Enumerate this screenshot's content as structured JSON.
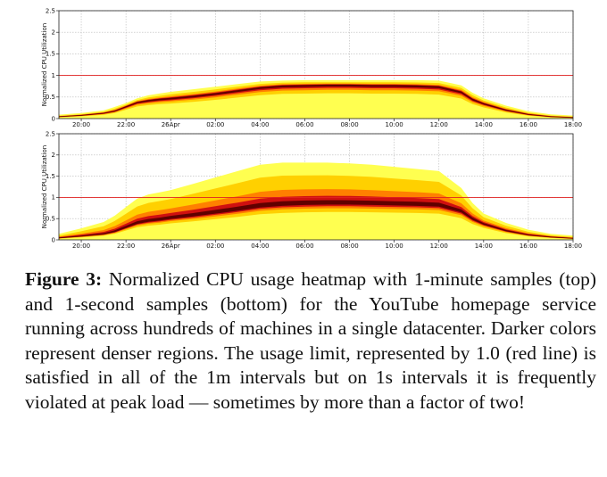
{
  "caption": {
    "label": "Figure 3:",
    "text": "Normalized CPU usage heatmap with 1-minute samples (top) and 1-second samples (bottom) for the YouTube homepage service running across hundreds of machines in a single datacenter. Darker colors represent denser regions. The usage limit, represented by 1.0 (red line) is satisfied in all of the 1m intervals but on 1s intervals it is frequently violated at peak load — sometimes by more than a factor of two!"
  },
  "chart_data": [
    {
      "type": "heatmap",
      "panel": "1-minute samples",
      "ylabel": "Normalized CPU Utilization",
      "x_ticks": [
        "20:00",
        "22:00",
        "26Apr",
        "02:00",
        "04:00",
        "06:00",
        "08:00",
        "10:00",
        "12:00",
        "14:00",
        "16:00",
        "18:00"
      ],
      "y_ticks": [
        "0",
        "0.5",
        "1",
        "1.5",
        "2",
        "2.5"
      ],
      "ylim": [
        0,
        2.5
      ],
      "limit_line": 1.0,
      "limit_color": "#e02020",
      "grid": true,
      "colormap": [
        "#ffff50",
        "#ffd000",
        "#ff8000",
        "#d01010",
        "#600000"
      ],
      "x": [
        19,
        20,
        21,
        21.5,
        22,
        22.5,
        23,
        23.5,
        24,
        25,
        26,
        27,
        28,
        29,
        30,
        31,
        32,
        33,
        34,
        35,
        36,
        37,
        37.5,
        38,
        39,
        40,
        41,
        42
      ],
      "median": [
        0.05,
        0.08,
        0.13,
        0.18,
        0.28,
        0.38,
        0.42,
        0.45,
        0.47,
        0.52,
        0.58,
        0.65,
        0.72,
        0.76,
        0.77,
        0.78,
        0.78,
        0.77,
        0.77,
        0.76,
        0.74,
        0.62,
        0.45,
        0.35,
        0.2,
        0.1,
        0.05,
        0.03
      ],
      "upper": [
        0.07,
        0.11,
        0.17,
        0.25,
        0.34,
        0.45,
        0.52,
        0.56,
        0.6,
        0.66,
        0.72,
        0.78,
        0.84,
        0.86,
        0.87,
        0.87,
        0.87,
        0.87,
        0.87,
        0.87,
        0.86,
        0.75,
        0.58,
        0.45,
        0.28,
        0.15,
        0.08,
        0.05
      ]
    },
    {
      "type": "heatmap",
      "panel": "1-second samples",
      "ylabel": "Normalized CPU Utilization",
      "x_ticks": [
        "20:00",
        "22:00",
        "26Apr",
        "02:00",
        "04:00",
        "06:00",
        "08:00",
        "10:00",
        "12:00",
        "14:00",
        "16:00",
        "18:00"
      ],
      "y_ticks": [
        "0",
        "0.5",
        "1",
        "1.5",
        "2",
        "2.5"
      ],
      "ylim": [
        0,
        2.5
      ],
      "limit_line": 1.0,
      "limit_color": "#e02020",
      "grid": true,
      "colormap": [
        "#ffff50",
        "#ffd000",
        "#ff8000",
        "#d01010",
        "#600000"
      ],
      "x": [
        19,
        20,
        21,
        21.5,
        22,
        22.5,
        23,
        23.5,
        24,
        25,
        26,
        27,
        28,
        29,
        30,
        31,
        32,
        33,
        34,
        35,
        36,
        37,
        37.5,
        38,
        39,
        40,
        41,
        42
      ],
      "median": [
        0.05,
        0.09,
        0.14,
        0.2,
        0.3,
        0.4,
        0.45,
        0.48,
        0.52,
        0.58,
        0.65,
        0.72,
        0.8,
        0.84,
        0.86,
        0.87,
        0.87,
        0.86,
        0.85,
        0.84,
        0.82,
        0.68,
        0.5,
        0.38,
        0.22,
        0.12,
        0.07,
        0.04
      ],
      "upper": [
        0.12,
        0.25,
        0.4,
        0.55,
        0.75,
        0.95,
        1.05,
        1.1,
        1.15,
        1.3,
        1.45,
        1.6,
        1.75,
        1.8,
        1.8,
        1.8,
        1.78,
        1.75,
        1.7,
        1.65,
        1.6,
        1.2,
        0.85,
        0.6,
        0.38,
        0.22,
        0.12,
        0.08
      ]
    }
  ]
}
